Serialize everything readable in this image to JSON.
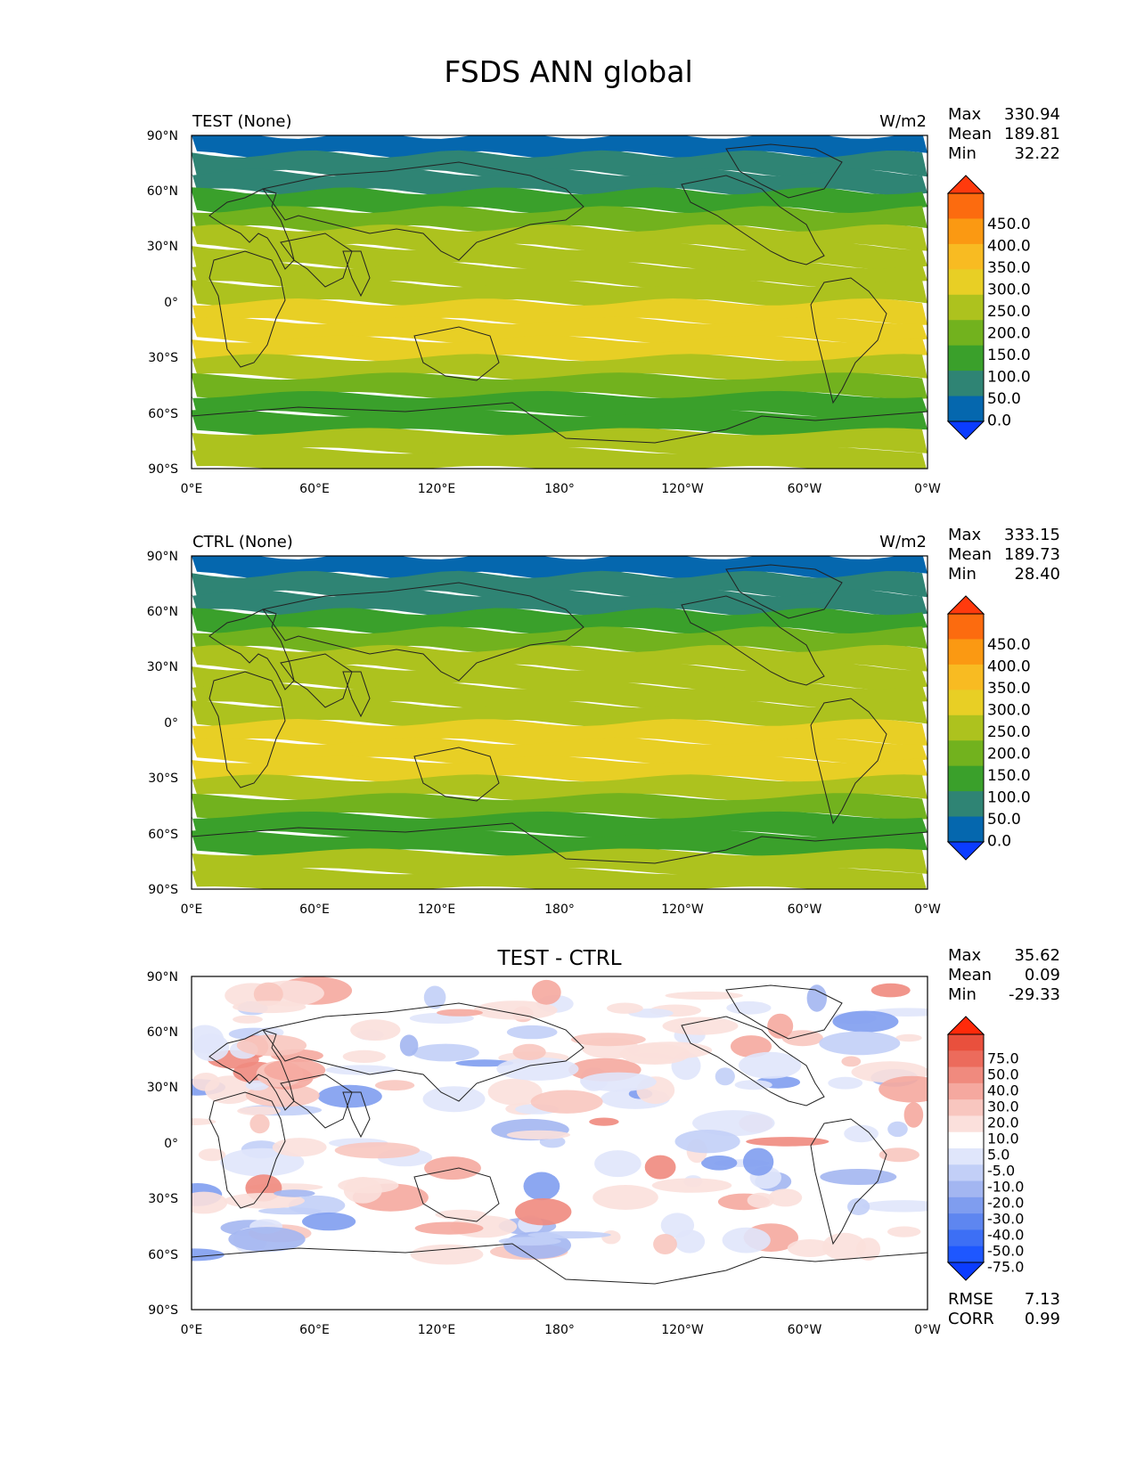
{
  "figure_title": "FSDS ANN global",
  "colors": {
    "field": [
      "#0b3cff",
      "#0567ae",
      "#2f8474",
      "#3aa02b",
      "#72b21e",
      "#adc21e",
      "#e8cf25",
      "#f8bb22",
      "#fb9912",
      "#fc6b0f",
      "#ff3a0d"
    ],
    "diff": [
      "#0b3cff",
      "#1e57ff",
      "#3d6ff5",
      "#5e86f0",
      "#7f9def",
      "#a3b6f1",
      "#c2cff7",
      "#e0e6fb",
      "#ffffff",
      "#fbe0dc",
      "#f8c6bf",
      "#f5a89f",
      "#f08a7e",
      "#ec6b5c",
      "#e9503d",
      "#ff2a0a"
    ]
  },
  "latitude_ticks": [
    "90°N",
    "60°N",
    "30°N",
    "0°",
    "30°S",
    "60°S",
    "90°S"
  ],
  "longitude_ticks": [
    "0°E",
    "60°E",
    "120°E",
    "180°",
    "120°W",
    "60°W",
    "0°W"
  ],
  "panels": [
    {
      "id": "test",
      "left_title": "TEST (None)",
      "center_title": "",
      "units": "W/m2",
      "stats": [
        {
          "label": "Max",
          "value": "330.94"
        },
        {
          "label": "Mean",
          "value": "189.81"
        },
        {
          "label": "Min",
          "value": "32.22"
        }
      ],
      "colorbar_labels": [
        "450.0",
        "400.0",
        "350.0",
        "300.0",
        "250.0",
        "200.0",
        "150.0",
        "100.0",
        "50.0",
        "0.0"
      ]
    },
    {
      "id": "ctrl",
      "left_title": "CTRL (None)",
      "center_title": "",
      "units": "W/m2",
      "stats": [
        {
          "label": "Max",
          "value": "333.15"
        },
        {
          "label": "Mean",
          "value": "189.73"
        },
        {
          "label": "Min",
          "value": "28.40"
        }
      ],
      "colorbar_labels": [
        "450.0",
        "400.0",
        "350.0",
        "300.0",
        "250.0",
        "200.0",
        "150.0",
        "100.0",
        "50.0",
        "0.0"
      ]
    },
    {
      "id": "diff",
      "left_title": "",
      "center_title": "TEST - CTRL",
      "units": "",
      "stats": [
        {
          "label": "Max",
          "value": "35.62"
        },
        {
          "label": "Mean",
          "value": "0.09"
        },
        {
          "label": "Min",
          "value": "-29.33"
        }
      ],
      "colorbar_labels": [
        "75.0",
        "50.0",
        "40.0",
        "30.0",
        "20.0",
        "10.0",
        "5.0",
        "-5.0",
        "-10.0",
        "-20.0",
        "-30.0",
        "-40.0",
        "-50.0",
        "-75.0"
      ],
      "extra_stats": [
        {
          "label": "RMSE",
          "value": "7.13"
        },
        {
          "label": "CORR",
          "value": "0.99"
        }
      ]
    }
  ],
  "chart_data": [
    {
      "type": "heatmap",
      "title": "TEST (None)",
      "variable": "FSDS",
      "season": "ANN",
      "region": "global",
      "units": "W/m2",
      "xlim": [
        0,
        360
      ],
      "ylim": [
        -90,
        90
      ],
      "levels": [
        0,
        50,
        100,
        150,
        200,
        250,
        300,
        350,
        400,
        450
      ],
      "stats": {
        "max": 330.94,
        "mean": 189.81,
        "min": 32.22
      },
      "zonal_profile": [
        {
          "lat": 85,
          "value": 45
        },
        {
          "lat": 75,
          "value": 60
        },
        {
          "lat": 65,
          "value": 90
        },
        {
          "lat": 55,
          "value": 120
        },
        {
          "lat": 45,
          "value": 160
        },
        {
          "lat": 35,
          "value": 215
        },
        {
          "lat": 25,
          "value": 245
        },
        {
          "lat": 15,
          "value": 240
        },
        {
          "lat": 5,
          "value": 225
        },
        {
          "lat": -5,
          "value": 250
        },
        {
          "lat": -15,
          "value": 255
        },
        {
          "lat": -25,
          "value": 250
        },
        {
          "lat": -35,
          "value": 210
        },
        {
          "lat": -45,
          "value": 170
        },
        {
          "lat": -55,
          "value": 130
        },
        {
          "lat": -65,
          "value": 130
        },
        {
          "lat": -75,
          "value": 205
        },
        {
          "lat": -85,
          "value": 210
        }
      ]
    },
    {
      "type": "heatmap",
      "title": "CTRL (None)",
      "variable": "FSDS",
      "season": "ANN",
      "region": "global",
      "units": "W/m2",
      "xlim": [
        0,
        360
      ],
      "ylim": [
        -90,
        90
      ],
      "levels": [
        0,
        50,
        100,
        150,
        200,
        250,
        300,
        350,
        400,
        450
      ],
      "stats": {
        "max": 333.15,
        "mean": 189.73,
        "min": 28.4
      },
      "zonal_profile": [
        {
          "lat": 85,
          "value": 45
        },
        {
          "lat": 75,
          "value": 60
        },
        {
          "lat": 65,
          "value": 90
        },
        {
          "lat": 55,
          "value": 120
        },
        {
          "lat": 45,
          "value": 160
        },
        {
          "lat": 35,
          "value": 215
        },
        {
          "lat": 25,
          "value": 245
        },
        {
          "lat": 15,
          "value": 238
        },
        {
          "lat": 5,
          "value": 225
        },
        {
          "lat": -5,
          "value": 250
        },
        {
          "lat": -15,
          "value": 255
        },
        {
          "lat": -25,
          "value": 250
        },
        {
          "lat": -35,
          "value": 210
        },
        {
          "lat": -45,
          "value": 170
        },
        {
          "lat": -55,
          "value": 130
        },
        {
          "lat": -65,
          "value": 130
        },
        {
          "lat": -75,
          "value": 205
        },
        {
          "lat": -85,
          "value": 210
        }
      ]
    },
    {
      "type": "heatmap",
      "title": "TEST - CTRL",
      "variable": "FSDS",
      "units": "W/m2",
      "xlim": [
        0,
        360
      ],
      "ylim": [
        -90,
        90
      ],
      "levels": [
        -75,
        -50,
        -40,
        -30,
        -20,
        -10,
        -5,
        5,
        10,
        20,
        30,
        40,
        50,
        75
      ],
      "stats": {
        "max": 35.62,
        "mean": 0.09,
        "min": -29.33,
        "rmse": 7.13,
        "corr": 0.99
      }
    }
  ]
}
